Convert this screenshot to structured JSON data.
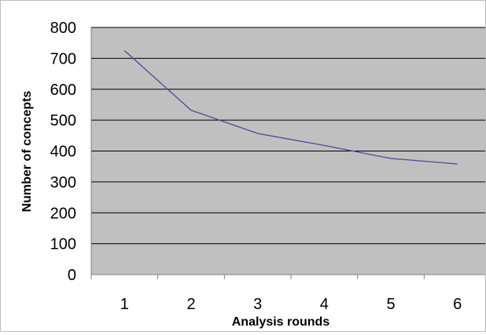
{
  "chart_data": {
    "type": "line",
    "x": [
      1,
      2,
      3,
      4,
      5,
      6
    ],
    "series": [
      {
        "values": [
          725,
          532,
          457,
          418,
          376,
          358
        ],
        "color": "#4a4aa0"
      }
    ],
    "xlabel": "Analysis rounds",
    "ylabel": "Number of concepts",
    "ylim": [
      0,
      800
    ],
    "yticks": [
      0,
      100,
      200,
      300,
      400,
      500,
      600,
      700,
      800
    ],
    "xticks": [
      "1",
      "2",
      "3",
      "4",
      "5",
      "6"
    ],
    "grid": true,
    "legend": "none",
    "plot_background": "#c0c0c0",
    "gridline_color": "#000000"
  }
}
